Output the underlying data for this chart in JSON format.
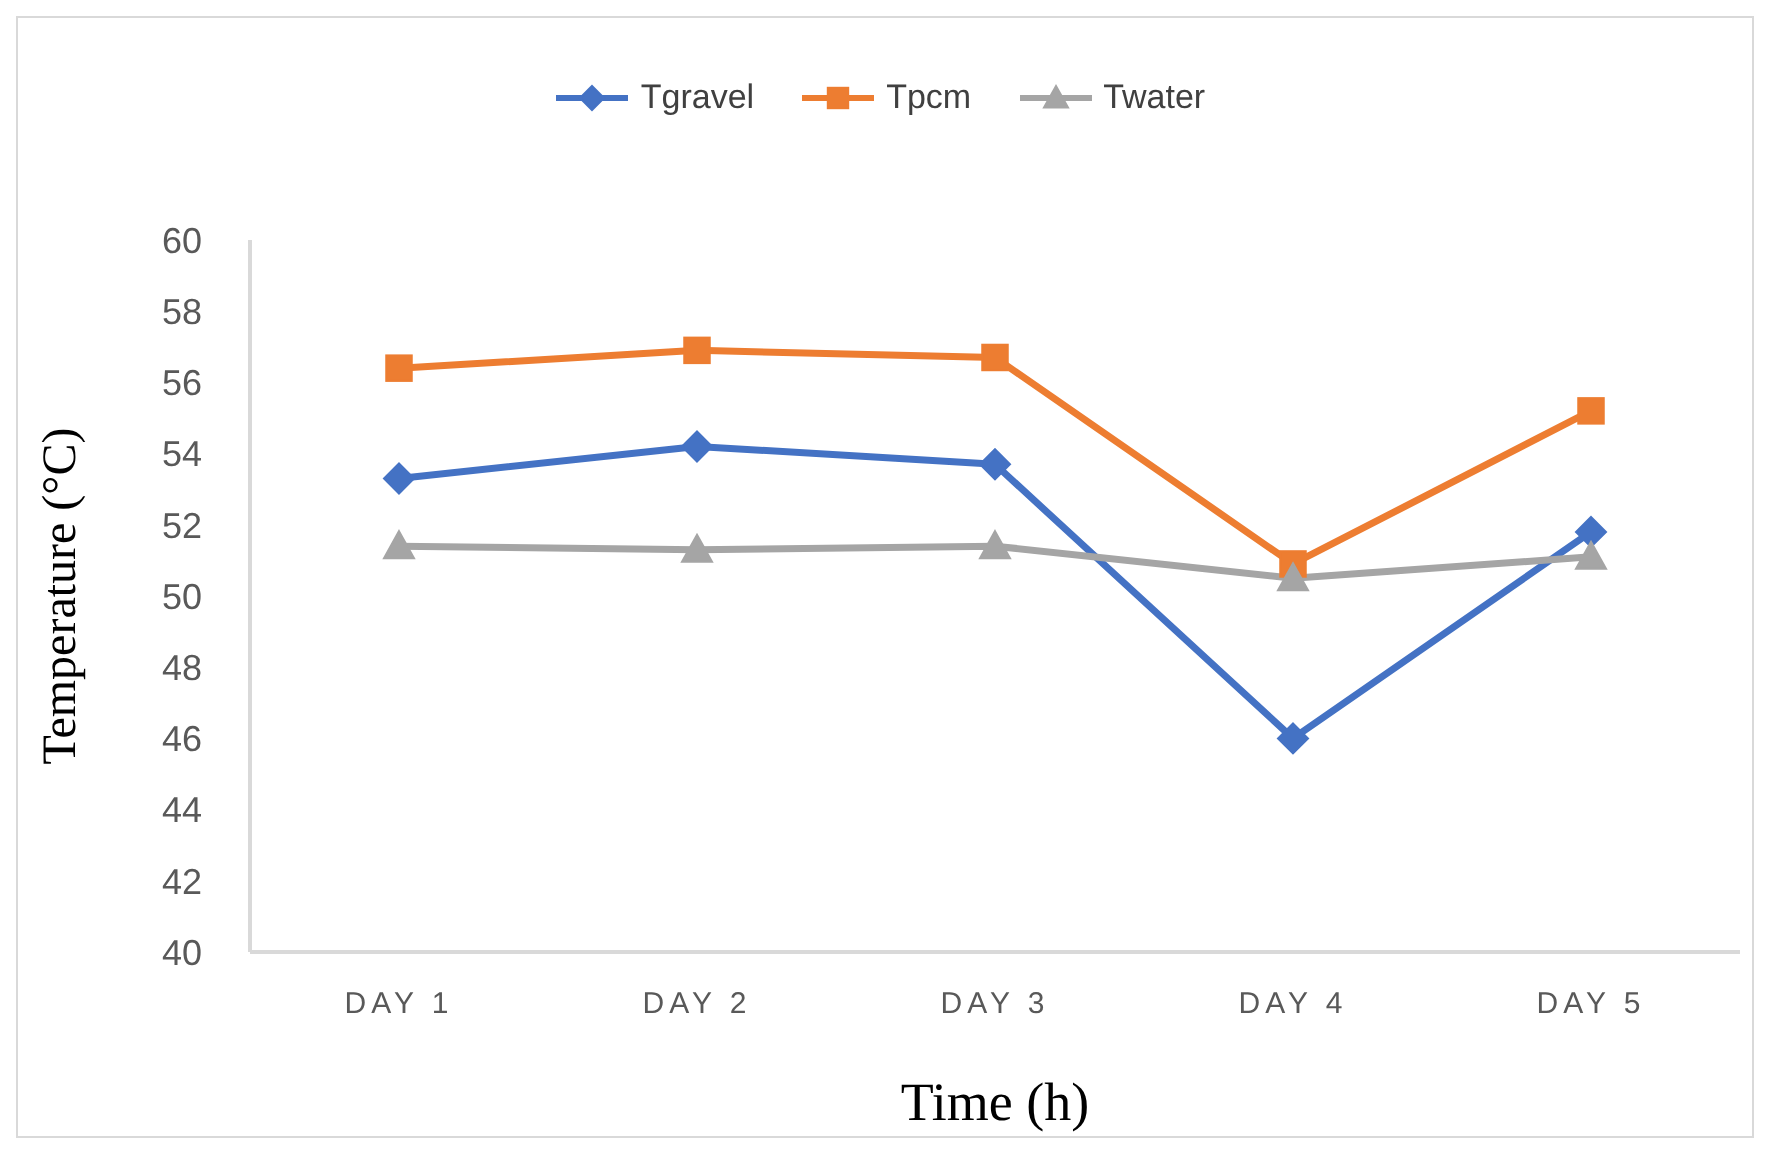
{
  "chart_data": {
    "type": "line",
    "xlabel": "Time (h)",
    "ylabel": "Temperature (°C)",
    "categories": [
      "DAY 1",
      "DAY 2",
      "DAY 3",
      "DAY 4",
      "DAY 5"
    ],
    "series": [
      {
        "name": "Tgravel",
        "color": "#4472c4",
        "marker": "diamond",
        "values": [
          53.3,
          54.2,
          53.7,
          46.0,
          51.8
        ]
      },
      {
        "name": "Tpcm",
        "color": "#ed7d31",
        "marker": "square",
        "values": [
          56.4,
          56.9,
          56.7,
          50.9,
          55.2
        ]
      },
      {
        "name": "Twater",
        "color": "#a5a5a5",
        "marker": "triangle",
        "values": [
          51.4,
          51.3,
          51.4,
          50.5,
          51.1
        ]
      }
    ],
    "ylim": [
      40,
      60
    ],
    "yticks": [
      40,
      42,
      44,
      46,
      48,
      50,
      52,
      54,
      56,
      58,
      60
    ],
    "grid": false,
    "legend": "top"
  }
}
